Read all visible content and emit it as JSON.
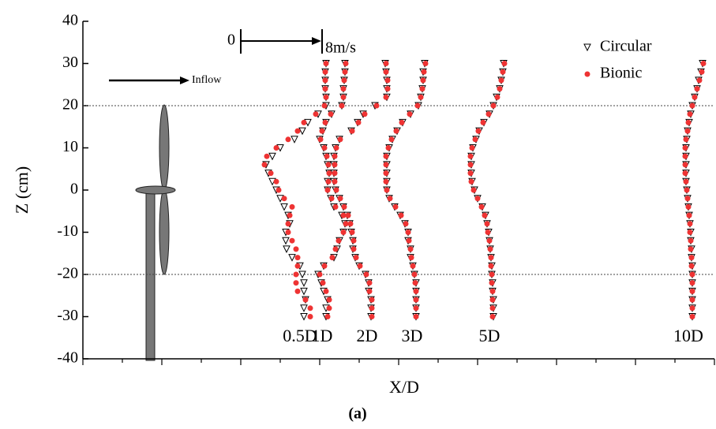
{
  "chart_data": {
    "type": "scatter",
    "x_label": "X/D",
    "y_label": "Z (cm)",
    "caption": "(a)",
    "xlim": [
      100,
      900
    ],
    "xticks": [
      100,
      150,
      200,
      250,
      300,
      350,
      400,
      450,
      500,
      550,
      600,
      650,
      700,
      750,
      800,
      850,
      900
    ],
    "ylim": [
      -40,
      40
    ],
    "yticks": [
      -40,
      -30,
      -20,
      -10,
      0,
      10,
      20,
      30,
      40
    ],
    "hlines": [
      20,
      -20
    ],
    "inflow_label": "Inflow",
    "scale_bar": {
      "start_label": "0",
      "end_label": "8m/s"
    },
    "stations": [
      "0.5D",
      "1D",
      "2D",
      "3D",
      "5D",
      "10D"
    ],
    "z": [
      30,
      28,
      26,
      24,
      22,
      20,
      18,
      16,
      14,
      12,
      10,
      8,
      6,
      4,
      2,
      0,
      -2,
      -4,
      -6,
      -8,
      -10,
      -12,
      -14,
      -16,
      -18,
      -20,
      -22,
      -24,
      -26,
      -28,
      -30
    ],
    "series": [
      {
        "name": "Circular",
        "color": "#000000",
        "profiles": [
          [
            408,
            407,
            407,
            407,
            408,
            408,
            398,
            385,
            378,
            368,
            350,
            340,
            332,
            335,
            340,
            345,
            350,
            355,
            360,
            362,
            357,
            357,
            358,
            365,
            375,
            378,
            380,
            380,
            382,
            380,
            380
          ],
          [
            432,
            432,
            431,
            430,
            430,
            428,
            415,
            408,
            404,
            400,
            405,
            408,
            410,
            412,
            410,
            410,
            414,
            418,
            428,
            432,
            430,
            425,
            422,
            418,
            405,
            398,
            402,
            405,
            410,
            408,
            408
          ],
          [
            483,
            484,
            485,
            485,
            485,
            470,
            455,
            448,
            440,
            425,
            420,
            418,
            418,
            418,
            418,
            420,
            425,
            430,
            435,
            438,
            440,
            442,
            442,
            445,
            450,
            458,
            462,
            462,
            465,
            465,
            465
          ],
          [
            533,
            531,
            531,
            530,
            528,
            525,
            515,
            505,
            498,
            492,
            488,
            485,
            485,
            485,
            485,
            485,
            488,
            495,
            502,
            508,
            512,
            512,
            515,
            515,
            518,
            520,
            522,
            522,
            522,
            522,
            522
          ],
          [
            633,
            632,
            630,
            628,
            624,
            620,
            615,
            608,
            602,
            598,
            594,
            592,
            592,
            592,
            593,
            596,
            600,
            606,
            610,
            612,
            614,
            615,
            616,
            617,
            618,
            618,
            619,
            619,
            620,
            620,
            620
          ],
          [
            885,
            883,
            880,
            878,
            875,
            872,
            870,
            868,
            866,
            865,
            864,
            864,
            864,
            864,
            864,
            865,
            866,
            867,
            868,
            869,
            870,
            870,
            871,
            871,
            872,
            872,
            872,
            872,
            872,
            872,
            872
          ]
        ]
      },
      {
        "name": "Bionic",
        "color": "#ee3333",
        "profiles": [
          [
            408,
            407,
            407,
            407,
            408,
            406,
            395,
            380,
            372,
            360,
            345,
            333,
            330,
            338,
            345,
            348,
            355,
            365,
            362,
            360,
            360,
            365,
            370,
            372,
            372,
            370,
            370,
            372,
            382,
            388,
            388
          ],
          [
            433,
            432,
            431,
            430,
            430,
            428,
            414,
            407,
            403,
            401,
            406,
            409,
            411,
            412,
            411,
            410,
            415,
            420,
            430,
            433,
            430,
            424,
            420,
            416,
            406,
            400,
            404,
            408,
            412,
            412,
            410
          ],
          [
            484,
            484,
            486,
            486,
            484,
            472,
            457,
            449,
            441,
            426,
            421,
            419,
            419,
            419,
            419,
            421,
            426,
            431,
            436,
            439,
            441,
            443,
            443,
            446,
            451,
            459,
            463,
            463,
            466,
            466,
            466
          ],
          [
            534,
            532,
            531,
            530,
            528,
            524,
            514,
            504,
            497,
            491,
            487,
            484,
            484,
            484,
            484,
            485,
            489,
            496,
            503,
            509,
            512,
            513,
            515,
            516,
            518,
            520,
            521,
            522,
            522,
            522,
            522
          ],
          [
            634,
            632,
            630,
            628,
            625,
            620,
            614,
            607,
            601,
            597,
            593,
            591,
            591,
            591,
            592,
            595,
            600,
            605,
            609,
            612,
            613,
            615,
            616,
            617,
            617,
            618,
            618,
            619,
            619,
            619,
            619
          ],
          [
            886,
            884,
            881,
            878,
            875,
            872,
            869,
            867,
            866,
            864,
            863,
            863,
            863,
            863,
            864,
            865,
            866,
            867,
            868,
            869,
            869,
            870,
            870,
            871,
            871,
            872,
            872,
            872,
            872,
            872,
            872
          ]
        ]
      }
    ]
  }
}
